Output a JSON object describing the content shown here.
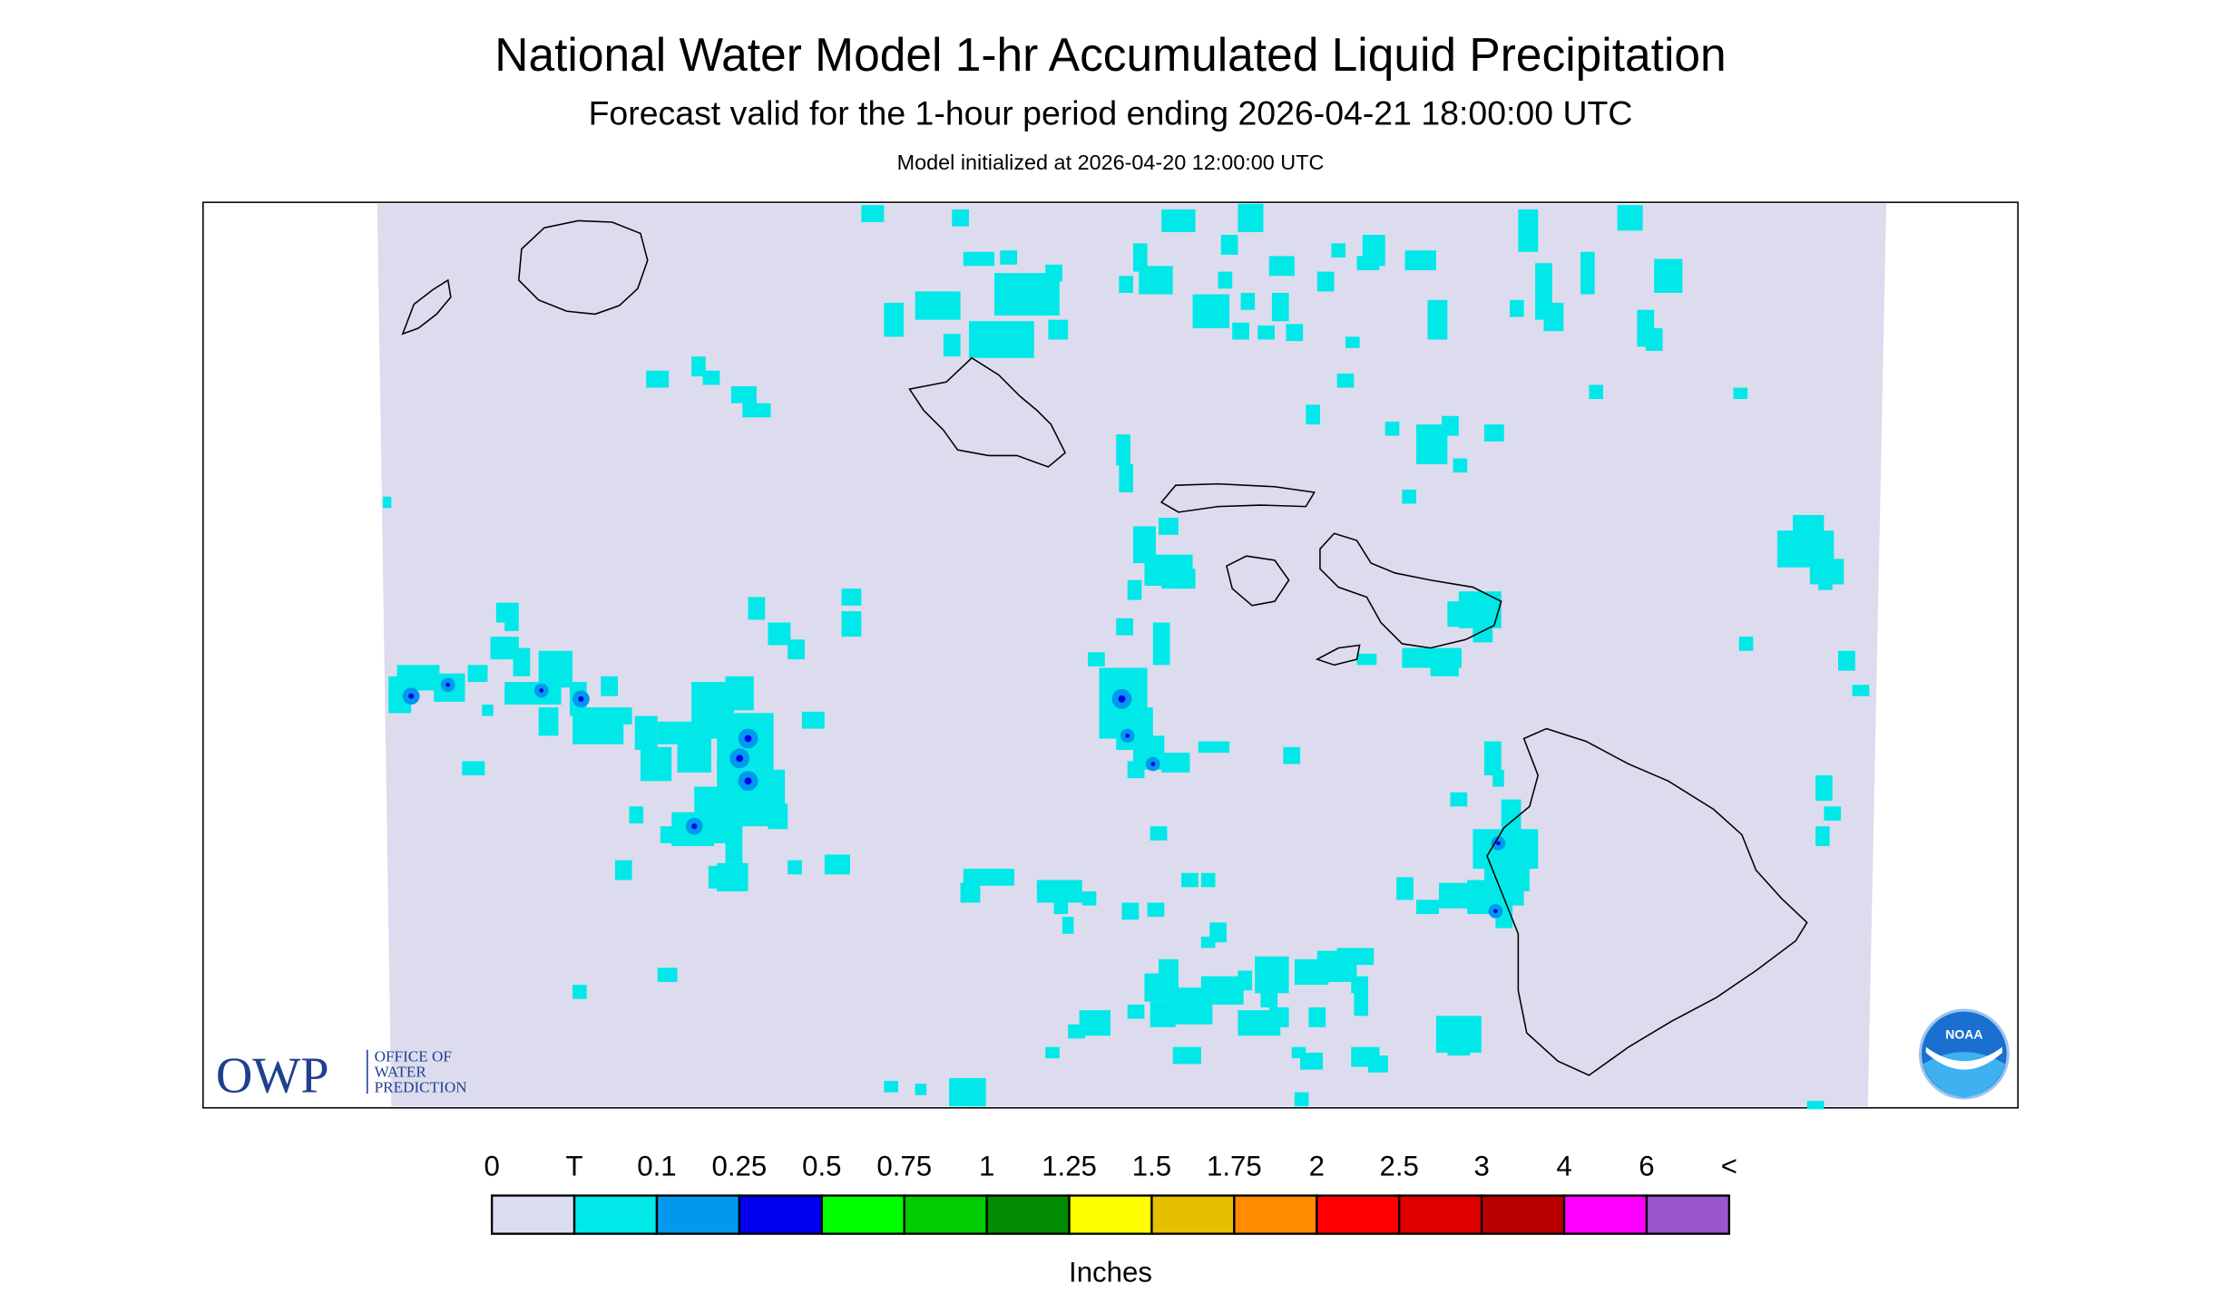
{
  "header": {
    "title": "National Water Model 1-hr Accumulated Liquid Precipitation",
    "subtitle": "Forecast valid for the 1-hour period ending 2026-04-21 18:00:00 UTC",
    "init": "Model initialized at 2026-04-20 12:00:00 UTC"
  },
  "legend": {
    "labels": [
      "0",
      "T",
      "0.1",
      "0.25",
      "0.5",
      "0.75",
      "1",
      "1.25",
      "1.5",
      "1.75",
      "2",
      "2.5",
      "3",
      "4",
      "6",
      "<"
    ],
    "colors": [
      "#dcdcf0",
      "#00e8e8",
      "#0099ee",
      "#0000ee",
      "#00ff00",
      "#00cc00",
      "#008b00",
      "#ffff00",
      "#e6bf00",
      "#ff8c00",
      "#ff0000",
      "#e00000",
      "#b80000",
      "#ff00ff",
      "#9955cc"
    ],
    "units": "Inches"
  },
  "logos": {
    "owp": "OWP",
    "owp_lines": [
      "OFFICE OF",
      "WATER",
      "PREDICTION"
    ],
    "noaa": "NOAA"
  }
}
